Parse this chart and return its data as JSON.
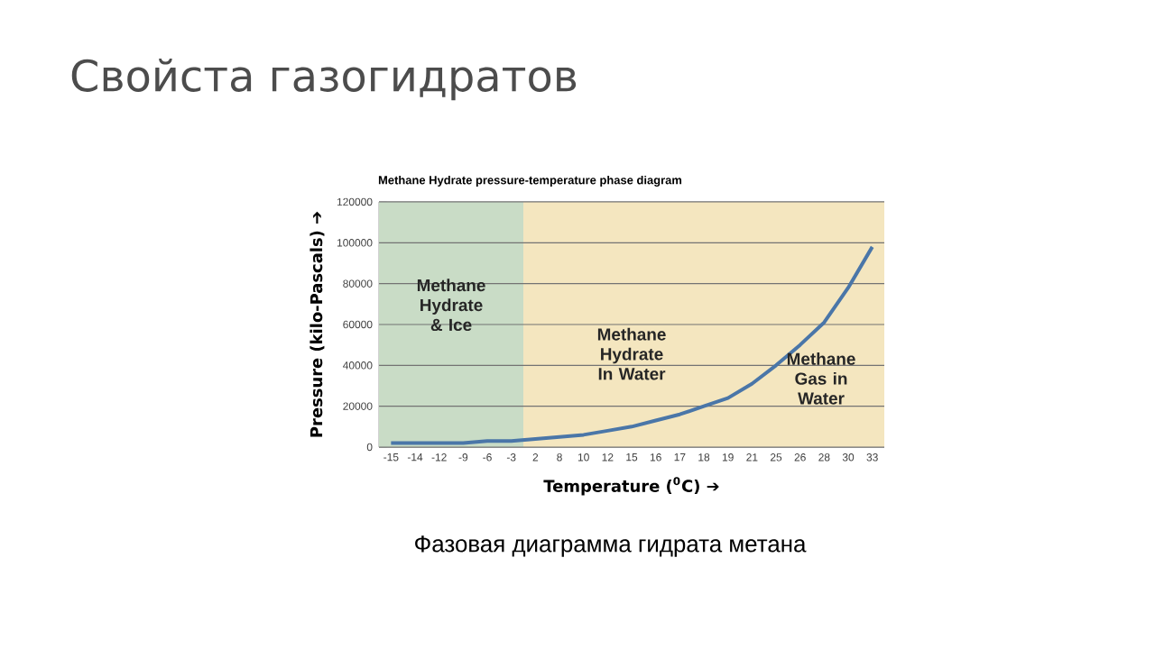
{
  "chart_data": {
    "type": "line",
    "title": "Свойста газогидратов",
    "subtitle": "Methane Hydrate pressure-temperature phase diagram",
    "xlabel": "Temperature ($^{0}$C) ➔",
    "ylabel": "Pressure (kilo-Pascals) ➔",
    "categories": [
      "-15",
      "-14",
      "-12",
      "-9",
      "-6",
      "-3",
      "2",
      "8",
      "10",
      "12",
      "15",
      "16",
      "17",
      "18",
      "19",
      "21",
      "25",
      "26",
      "28",
      "30",
      "33"
    ],
    "series": [
      {
        "color": "#4a76a8",
        "values": [
          2000,
          2000,
          2000,
          2000,
          3000,
          3000,
          4000,
          5000,
          6000,
          8000,
          10000,
          13000,
          16000,
          20000,
          24000,
          31000,
          40000,
          50000,
          61000,
          78000,
          98000
        ]
      }
    ],
    "ylim": [
      0,
      120000
    ],
    "yticks": [
      0,
      20000,
      40000,
      60000,
      80000,
      100000,
      120000
    ],
    "grid": "y",
    "marker": "none",
    "line_style": "solid",
    "bands": [
      {
        "axis": "x",
        "from": "-15",
        "to": "-3",
        "color": "#c9dcc6",
        "label": "Methane Hydrate & Ice"
      },
      {
        "axis": "x",
        "from": "2",
        "to": "33",
        "color": "#f4e6bf"
      }
    ],
    "annotations": [
      "Methane Hydrate In Water",
      "Methane Gas in Water",
      "Фазовая диаграмма гидрата метана"
    ]
  }
}
